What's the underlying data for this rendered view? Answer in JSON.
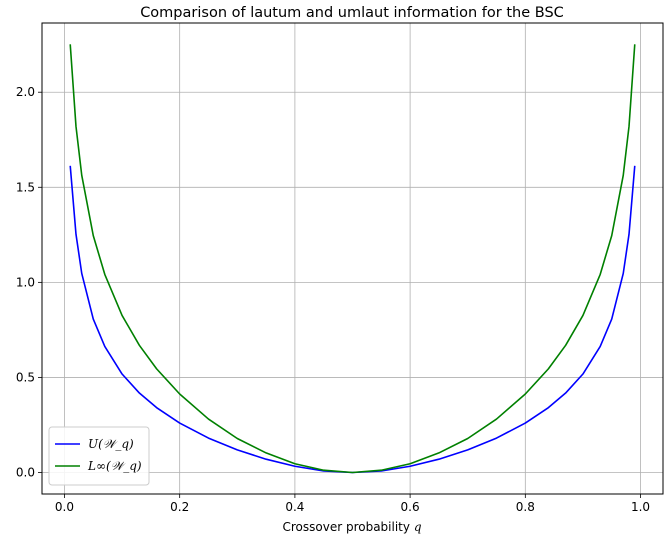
{
  "chart_data": {
    "type": "line",
    "title": "Comparison of lautum and umlaut information for the BSC",
    "xlabel": "Crossover probability",
    "xlabel_var": "q",
    "ylabel": "",
    "xlim": [
      -0.039,
      1.039
    ],
    "ylim": [
      -0.113,
      2.364
    ],
    "xticks": [
      "0.0",
      "0.2",
      "0.4",
      "0.6",
      "0.8",
      "1.0"
    ],
    "yticks": [
      "0.0",
      "0.5",
      "1.0",
      "1.5",
      "2.0"
    ],
    "grid": true,
    "legend_position": "lower-left",
    "x": [
      0.01,
      0.02,
      0.03,
      0.05,
      0.07,
      0.1,
      0.13,
      0.16,
      0.2,
      0.25,
      0.3,
      0.35,
      0.4,
      0.45,
      0.5,
      0.55,
      0.6,
      0.65,
      0.7,
      0.75,
      0.8,
      0.84,
      0.87,
      0.9,
      0.93,
      0.95,
      0.97,
      0.98,
      0.99
    ],
    "series": [
      {
        "name": "U(𝒲_q)",
        "color": "#0000ff",
        "values": [
          1.613,
          1.253,
          1.047,
          0.807,
          0.663,
          0.518,
          0.418,
          0.341,
          0.26,
          0.181,
          0.119,
          0.07,
          0.033,
          0.008,
          0.0,
          0.008,
          0.033,
          0.07,
          0.119,
          0.181,
          0.26,
          0.341,
          0.418,
          0.518,
          0.663,
          0.807,
          1.047,
          1.253,
          1.613
        ]
      },
      {
        "name": "L∞(𝒲_q)",
        "color": "#008000",
        "values": [
          2.252,
          1.82,
          1.563,
          1.246,
          1.042,
          0.826,
          0.669,
          0.545,
          0.413,
          0.281,
          0.179,
          0.103,
          0.046,
          0.012,
          0.0,
          0.012,
          0.046,
          0.103,
          0.179,
          0.281,
          0.413,
          0.545,
          0.669,
          0.826,
          1.042,
          1.246,
          1.563,
          1.82,
          2.252
        ]
      }
    ]
  }
}
